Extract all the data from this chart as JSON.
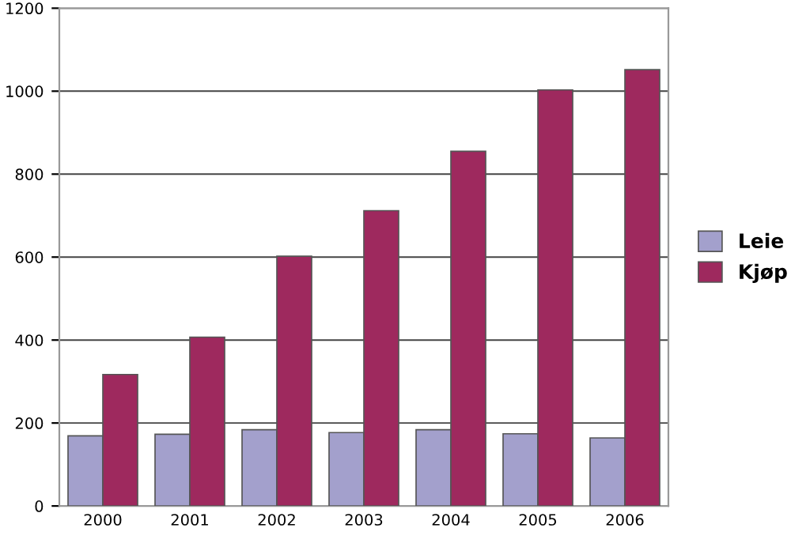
{
  "chart_data": {
    "type": "bar",
    "categories": [
      "2000",
      "2001",
      "2002",
      "2003",
      "2004",
      "2005",
      "2006"
    ],
    "series": [
      {
        "name": "Leie",
        "color": "#a3a0cc",
        "values": [
          169,
          173,
          184,
          177,
          184,
          174,
          164
        ]
      },
      {
        "name": "Kjøp",
        "color": "#9e295e",
        "values": [
          317,
          407,
          602,
          712,
          855,
          1003,
          1052
        ]
      }
    ],
    "ylim": [
      0,
      1200
    ],
    "yticks": [
      0,
      200,
      400,
      600,
      800,
      1000,
      1200
    ],
    "grid": "y",
    "legend": "right"
  }
}
